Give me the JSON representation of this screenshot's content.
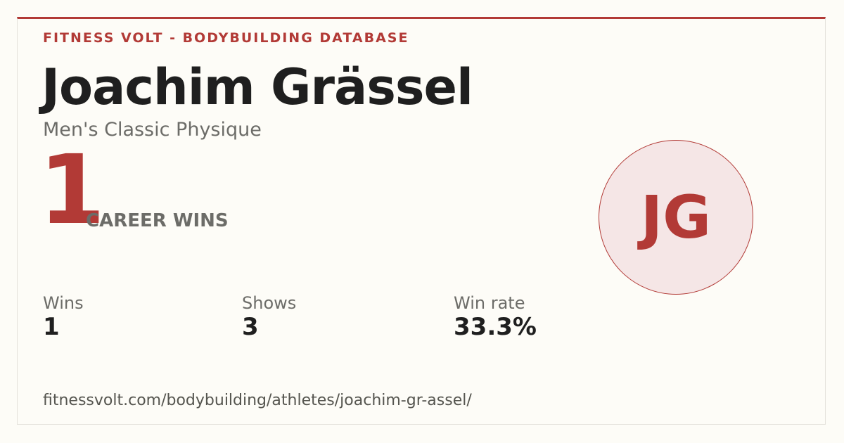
{
  "header": {
    "brand": "FITNESS VOLT - BODYBUILDING DATABASE",
    "name": "Joachim Grässel",
    "division": "Men's Classic Physique"
  },
  "hero": {
    "wins": "1",
    "label": "CAREER WINS"
  },
  "avatar": {
    "initials": "JG"
  },
  "stats": [
    {
      "label": "Wins",
      "value": "1"
    },
    {
      "label": "Shows",
      "value": "3"
    },
    {
      "label": "Win rate",
      "value": "33.3%"
    }
  ],
  "footer": {
    "url": "fitnessvolt.com/bodybuilding/athletes/joachim-gr-assel/"
  }
}
